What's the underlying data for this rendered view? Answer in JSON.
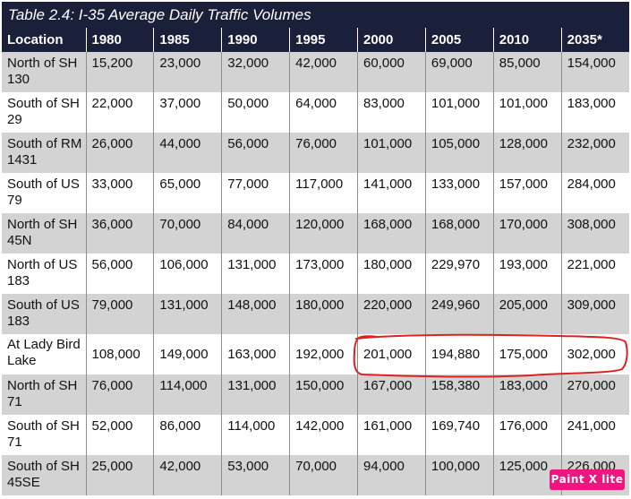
{
  "title": "Table 2.4: I-35 Average Daily Traffic Volumes",
  "columns": [
    "Location",
    "1980",
    "1985",
    "1990",
    "1995",
    "2000",
    "2005",
    "2010",
    "2035*"
  ],
  "rows": [
    {
      "location": "North of SH 130",
      "values": [
        "15,200",
        "23,000",
        "32,000",
        "42,000",
        "60,000",
        "69,000",
        "85,000",
        "154,000"
      ]
    },
    {
      "location": "South of SH 29",
      "values": [
        "22,000",
        "37,000",
        "50,000",
        "64,000",
        "83,000",
        "101,000",
        "101,000",
        "183,000"
      ]
    },
    {
      "location": "South of RM 1431",
      "values": [
        "26,000",
        "44,000",
        "56,000",
        "76,000",
        "101,000",
        "105,000",
        "128,000",
        "232,000"
      ]
    },
    {
      "location": "South of US 79",
      "values": [
        "33,000",
        "65,000",
        "77,000",
        "117,000",
        "141,000",
        "133,000",
        "157,000",
        "284,000"
      ]
    },
    {
      "location": "North of SH 45N",
      "values": [
        "36,000",
        "70,000",
        "84,000",
        "120,000",
        "168,000",
        "168,000",
        "170,000",
        "308,000"
      ]
    },
    {
      "location": "North of US 183",
      "values": [
        "56,000",
        "106,000",
        "131,000",
        "173,000",
        "180,000",
        "229,970",
        "193,000",
        "221,000"
      ]
    },
    {
      "location": "South of US 183",
      "values": [
        "79,000",
        "131,000",
        "148,000",
        "180,000",
        "220,000",
        "249,960",
        "205,000",
        "309,000"
      ]
    },
    {
      "location": "At Lady Bird Lake",
      "values": [
        "108,000",
        "149,000",
        "163,000",
        "192,000",
        "201,000",
        "194,880",
        "175,000",
        "302,000"
      ]
    },
    {
      "location": "North of SH 71",
      "values": [
        "76,000",
        "114,000",
        "131,000",
        "150,000",
        "167,000",
        "158,380",
        "183,000",
        "270,000"
      ]
    },
    {
      "location": "South of SH 71",
      "values": [
        "52,000",
        "86,000",
        "114,000",
        "142,000",
        "161,000",
        "169,740",
        "176,000",
        "241,000"
      ]
    },
    {
      "location": "South of SH 45SE",
      "values": [
        "25,000",
        "42,000",
        "53,000",
        "70,000",
        "94,000",
        "100,000",
        "125,000",
        "226,000"
      ]
    }
  ],
  "badge": "Paint X lite",
  "colors": {
    "header": "#1a1f3a",
    "stripe": "#d3d3d3",
    "annotation": "#e02020",
    "badge": "#f0157f"
  }
}
